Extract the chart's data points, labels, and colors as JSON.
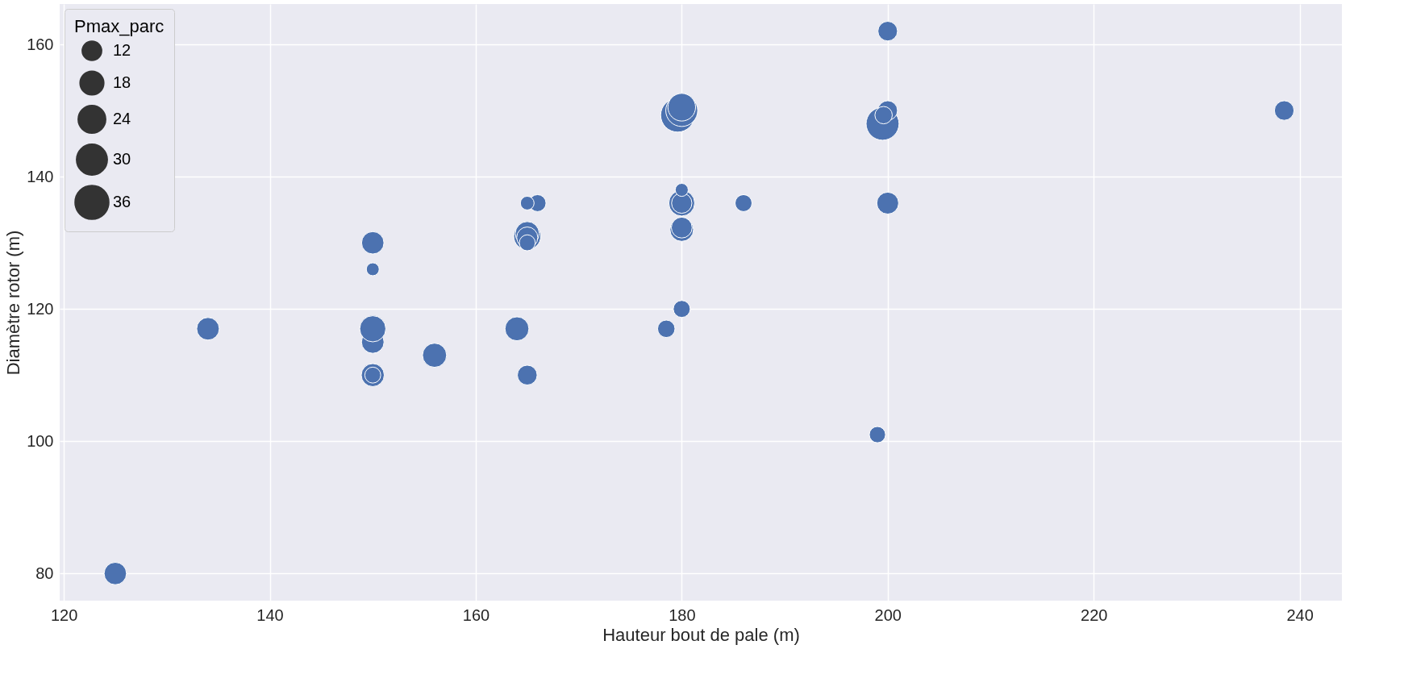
{
  "chart_data": {
    "type": "bubble",
    "xlabel": "Hauteur bout de pale (m)",
    "ylabel": "Diamètre rotor (m)",
    "legend_title": "Pmax_parc",
    "x": [
      200,
      238.5,
      179.6,
      180,
      180,
      199.5,
      200,
      199.6,
      200,
      186,
      180,
      180,
      180,
      180,
      180,
      180,
      178.5,
      150,
      150,
      150,
      150,
      150,
      150,
      156,
      164,
      165,
      165,
      165,
      165,
      165,
      166,
      165,
      134,
      125,
      199
    ],
    "series": [
      {
        "color": "#4c72b0",
        "values": [
          162,
          150,
          149.3,
          150,
          150.5,
          148,
          150,
          149.3,
          136,
          136,
          136,
          136,
          138,
          132,
          132.3,
          120,
          117,
          130,
          126,
          115,
          117,
          110,
          110,
          113,
          117,
          110,
          131,
          131.4,
          130.8,
          130,
          136,
          136,
          117,
          80,
          101
        ],
        "sizes": [
          12,
          12,
          36,
          32,
          24,
          34,
          12,
          9.5,
          15,
          9,
          21,
          13,
          5.3,
          17.4,
          13.6,
          9,
          9.5,
          15.7,
          5.2,
          16,
          21.4,
          16.6,
          8,
          18.2,
          18,
          12.3,
          23,
          18,
          14,
          8,
          9,
          5.9,
          16,
          15.7,
          8.3
        ]
      }
    ],
    "size_legend": [
      12,
      18,
      24,
      30,
      36
    ],
    "xlim": [
      119.6,
      244.1
    ],
    "ylim": [
      75.9,
      166.1
    ],
    "xticks": [
      120,
      140,
      160,
      180,
      200,
      220,
      240
    ],
    "yticks": [
      80,
      100,
      120,
      140,
      160
    ],
    "grid": true,
    "marker": "circle"
  }
}
